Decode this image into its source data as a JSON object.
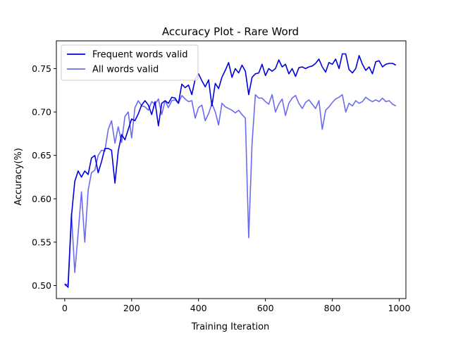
{
  "chart_data": {
    "type": "line",
    "title": "Accuracy Plot - Rare Word",
    "xlabel": "Training Iteration",
    "ylabel": "Accuracy(%)",
    "xlim": [
      -25,
      1020
    ],
    "ylim": [
      0.485,
      0.782
    ],
    "xticks": [
      0,
      200,
      400,
      600,
      800,
      1000
    ],
    "yticks": [
      0.5,
      0.55,
      0.6,
      0.65,
      0.7,
      0.75
    ],
    "xtick_labels": [
      "0",
      "200",
      "400",
      "600",
      "800",
      "1000"
    ],
    "ytick_labels": [
      "0.50",
      "0.55",
      "0.60",
      "0.65",
      "0.70",
      "0.75"
    ],
    "legend_position": "top-left",
    "grid": false,
    "series": [
      {
        "name": "Frequent words valid",
        "color": "#0000dd",
        "x": [
          0,
          10,
          20,
          30,
          40,
          50,
          60,
          70,
          80,
          90,
          100,
          110,
          120,
          130,
          140,
          150,
          160,
          170,
          180,
          190,
          200,
          210,
          220,
          230,
          240,
          250,
          260,
          270,
          280,
          290,
          300,
          310,
          320,
          330,
          340,
          350,
          360,
          370,
          380,
          390,
          400,
          410,
          420,
          430,
          440,
          450,
          460,
          470,
          480,
          490,
          500,
          510,
          520,
          530,
          540,
          550,
          560,
          570,
          580,
          590,
          600,
          610,
          620,
          630,
          640,
          650,
          660,
          670,
          680,
          690,
          700,
          710,
          720,
          730,
          740,
          750,
          760,
          770,
          780,
          790,
          800,
          810,
          820,
          830,
          840,
          850,
          860,
          870,
          880,
          890,
          900,
          910,
          920,
          930,
          940,
          950,
          960,
          970,
          980,
          990
        ],
        "y": [
          0.502,
          0.498,
          0.58,
          0.62,
          0.632,
          0.625,
          0.632,
          0.628,
          0.647,
          0.65,
          0.63,
          0.643,
          0.658,
          0.658,
          0.656,
          0.618,
          0.655,
          0.674,
          0.668,
          0.68,
          0.692,
          0.69,
          0.698,
          0.708,
          0.713,
          0.708,
          0.697,
          0.712,
          0.684,
          0.71,
          0.713,
          0.71,
          0.717,
          0.716,
          0.71,
          0.732,
          0.728,
          0.731,
          0.72,
          0.738,
          0.744,
          0.736,
          0.729,
          0.737,
          0.707,
          0.733,
          0.727,
          0.74,
          0.748,
          0.757,
          0.74,
          0.75,
          0.745,
          0.754,
          0.747,
          0.72,
          0.74,
          0.744,
          0.745,
          0.755,
          0.742,
          0.75,
          0.747,
          0.75,
          0.76,
          0.752,
          0.755,
          0.744,
          0.75,
          0.741,
          0.751,
          0.752,
          0.75,
          0.752,
          0.753,
          0.756,
          0.761,
          0.752,
          0.746,
          0.757,
          0.755,
          0.761,
          0.75,
          0.767,
          0.767,
          0.749,
          0.745,
          0.75,
          0.765,
          0.755,
          0.748,
          0.752,
          0.744,
          0.758,
          0.759,
          0.752,
          0.755,
          0.756,
          0.756,
          0.754
        ]
      },
      {
        "name": "All words valid",
        "color": "#6b6bf0",
        "x": [
          0,
          10,
          20,
          30,
          40,
          50,
          60,
          70,
          80,
          90,
          100,
          110,
          120,
          130,
          140,
          150,
          160,
          170,
          180,
          190,
          200,
          210,
          220,
          230,
          240,
          250,
          260,
          270,
          280,
          290,
          300,
          310,
          320,
          330,
          340,
          350,
          360,
          370,
          380,
          390,
          400,
          410,
          420,
          430,
          440,
          450,
          460,
          470,
          480,
          490,
          500,
          510,
          520,
          530,
          540,
          550,
          560,
          570,
          580,
          590,
          600,
          610,
          620,
          630,
          640,
          650,
          660,
          670,
          680,
          690,
          700,
          710,
          720,
          730,
          740,
          750,
          760,
          770,
          780,
          790,
          800,
          810,
          820,
          830,
          840,
          850,
          860,
          870,
          880,
          890,
          900,
          910,
          920,
          930,
          940,
          950,
          960,
          970,
          980,
          990
        ],
        "y": [
          0.5,
          0.502,
          0.583,
          0.515,
          0.56,
          0.608,
          0.55,
          0.61,
          0.63,
          0.633,
          0.65,
          0.656,
          0.655,
          0.68,
          0.69,
          0.664,
          0.683,
          0.665,
          0.695,
          0.7,
          0.67,
          0.705,
          0.713,
          0.707,
          0.706,
          0.702,
          0.712,
          0.709,
          0.715,
          0.697,
          0.713,
          0.705,
          0.713,
          0.714,
          0.71,
          0.719,
          0.715,
          0.712,
          0.713,
          0.693,
          0.705,
          0.708,
          0.69,
          0.698,
          0.71,
          0.7,
          0.685,
          0.71,
          0.706,
          0.704,
          0.702,
          0.699,
          0.702,
          0.697,
          0.693,
          0.555,
          0.664,
          0.72,
          0.716,
          0.716,
          0.712,
          0.709,
          0.72,
          0.7,
          0.709,
          0.715,
          0.696,
          0.71,
          0.716,
          0.719,
          0.71,
          0.704,
          0.711,
          0.714,
          0.709,
          0.704,
          0.713,
          0.68,
          0.702,
          0.706,
          0.711,
          0.715,
          0.717,
          0.72,
          0.7,
          0.71,
          0.707,
          0.713,
          0.71,
          0.712,
          0.717,
          0.714,
          0.712,
          0.714,
          0.712,
          0.716,
          0.712,
          0.713,
          0.709,
          0.707
        ]
      }
    ]
  }
}
